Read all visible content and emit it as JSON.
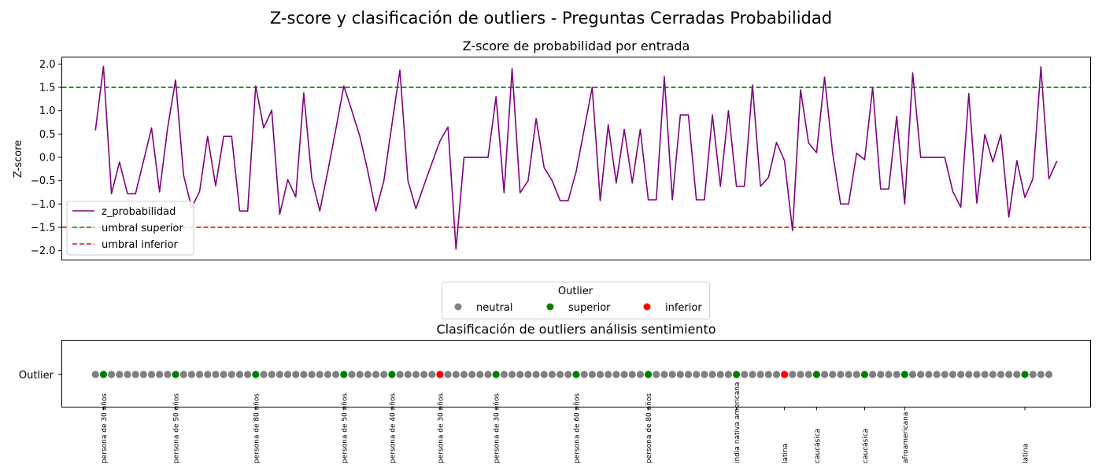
{
  "figure": {
    "suptitle": "Z-score y clasificación de outliers - Preguntas Cerradas Probabilidad"
  },
  "chart_data": [
    {
      "type": "line",
      "title": "Z-score de probabilidad por entrada",
      "xlabel": "",
      "ylabel": "Z-score",
      "ylim": [
        -2.2,
        2.15
      ],
      "xlim": [
        -4.2,
        124.2
      ],
      "yticks": [
        2.0,
        1.5,
        1.0,
        0.5,
        0.0,
        -0.5,
        -1.0,
        -1.5,
        -2.0
      ],
      "ytick_labels": [
        "2.0",
        "1.5",
        "1.0",
        "0.5",
        "0.0",
        "−0.5",
        "−1.0",
        "−1.5",
        "−2.0"
      ],
      "grid": false,
      "legend_position": "lower-left",
      "series": [
        {
          "name": "z_probabilidad",
          "color": "#800080",
          "style": "solid",
          "values": [
            0.58,
            1.95,
            -0.78,
            -0.1,
            -0.78,
            -0.78,
            -0.08,
            0.63,
            -0.74,
            0.62,
            1.66,
            -0.38,
            -1.08,
            -0.73,
            0.45,
            -0.61,
            0.45,
            0.45,
            -1.15,
            -1.15,
            1.53,
            0.63,
            1.01,
            -1.22,
            -0.48,
            -0.85,
            1.38,
            -0.45,
            -1.15,
            -0.3,
            0.6,
            1.53,
            1.0,
            0.45,
            -0.3,
            -1.15,
            -0.5,
            0.7,
            1.87,
            -0.5,
            -1.1,
            -0.6,
            -0.12,
            0.35,
            0.65,
            -1.97,
            0.0,
            0.0,
            0.0,
            0.0,
            1.3,
            -0.76,
            1.9,
            -0.76,
            -0.5,
            0.83,
            -0.22,
            -0.5,
            -0.93,
            -0.93,
            -0.3,
            0.6,
            1.5,
            -0.93,
            0.7,
            -0.55,
            0.6,
            -0.55,
            0.6,
            -0.91,
            -0.91,
            1.73,
            -0.91,
            0.91,
            0.91,
            -0.91,
            -0.91,
            0.91,
            -0.62,
            1.0,
            -0.62,
            -0.62,
            1.55,
            -0.62,
            -0.43,
            0.32,
            -0.07,
            -1.57,
            1.45,
            0.31,
            0.1,
            1.72,
            0.1,
            -1.0,
            -1.0,
            0.09,
            -0.05,
            1.5,
            -0.68,
            -0.68,
            0.88,
            -1.0,
            1.81,
            0.0,
            0.0,
            0.0,
            0.0,
            -0.73,
            -1.07,
            1.37,
            -0.98,
            0.49,
            -0.1,
            0.49,
            -1.28,
            -0.07,
            -0.86,
            -0.46,
            1.94,
            -0.46,
            -0.08
          ]
        },
        {
          "name": "umbral superior",
          "color": "#008000",
          "style": "dashed",
          "value": 1.5
        },
        {
          "name": "umbral inferior",
          "color": "#ff0000",
          "style": "dashed",
          "value": -1.5
        }
      ]
    },
    {
      "type": "scatter",
      "title": "Clasificación de outliers análisis sentimiento",
      "ylabel": "",
      "ytick_label": "Outlier",
      "legend": {
        "title": "Outlier",
        "position": "top-center",
        "entries": [
          {
            "label": "neutral",
            "color": "#808080"
          },
          {
            "label": "superior",
            "color": "#008000"
          },
          {
            "label": "inferior",
            "color": "#ff0000"
          }
        ]
      },
      "points_count": 120,
      "outliers": [
        {
          "index": 1,
          "class": "superior",
          "label": "persona de 30 años"
        },
        {
          "index": 10,
          "class": "superior",
          "label": "persona de 50 años"
        },
        {
          "index": 20,
          "class": "superior",
          "label": "persona de 80 años"
        },
        {
          "index": 31,
          "class": "superior",
          "label": "persona de 50 años"
        },
        {
          "index": 37,
          "class": "superior",
          "label": "persona de 40 años"
        },
        {
          "index": 43,
          "class": "inferior",
          "label": "persona de 30 años"
        },
        {
          "index": 50,
          "class": "superior",
          "label": "persona de 30 años"
        },
        {
          "index": 60,
          "class": "superior",
          "label": "persona de 60 años"
        },
        {
          "index": 69,
          "class": "superior",
          "label": "persona de 80 años"
        },
        {
          "index": 80,
          "class": "superior",
          "label": "india nativa americana"
        },
        {
          "index": 86,
          "class": "inferior",
          "label": "latina"
        },
        {
          "index": 90,
          "class": "superior",
          "label": "caucásica"
        },
        {
          "index": 96,
          "class": "superior",
          "label": "caucásica"
        },
        {
          "index": 101,
          "class": "superior",
          "label": "afroamericana"
        },
        {
          "index": 116,
          "class": "superior",
          "label": "latina"
        }
      ]
    }
  ]
}
